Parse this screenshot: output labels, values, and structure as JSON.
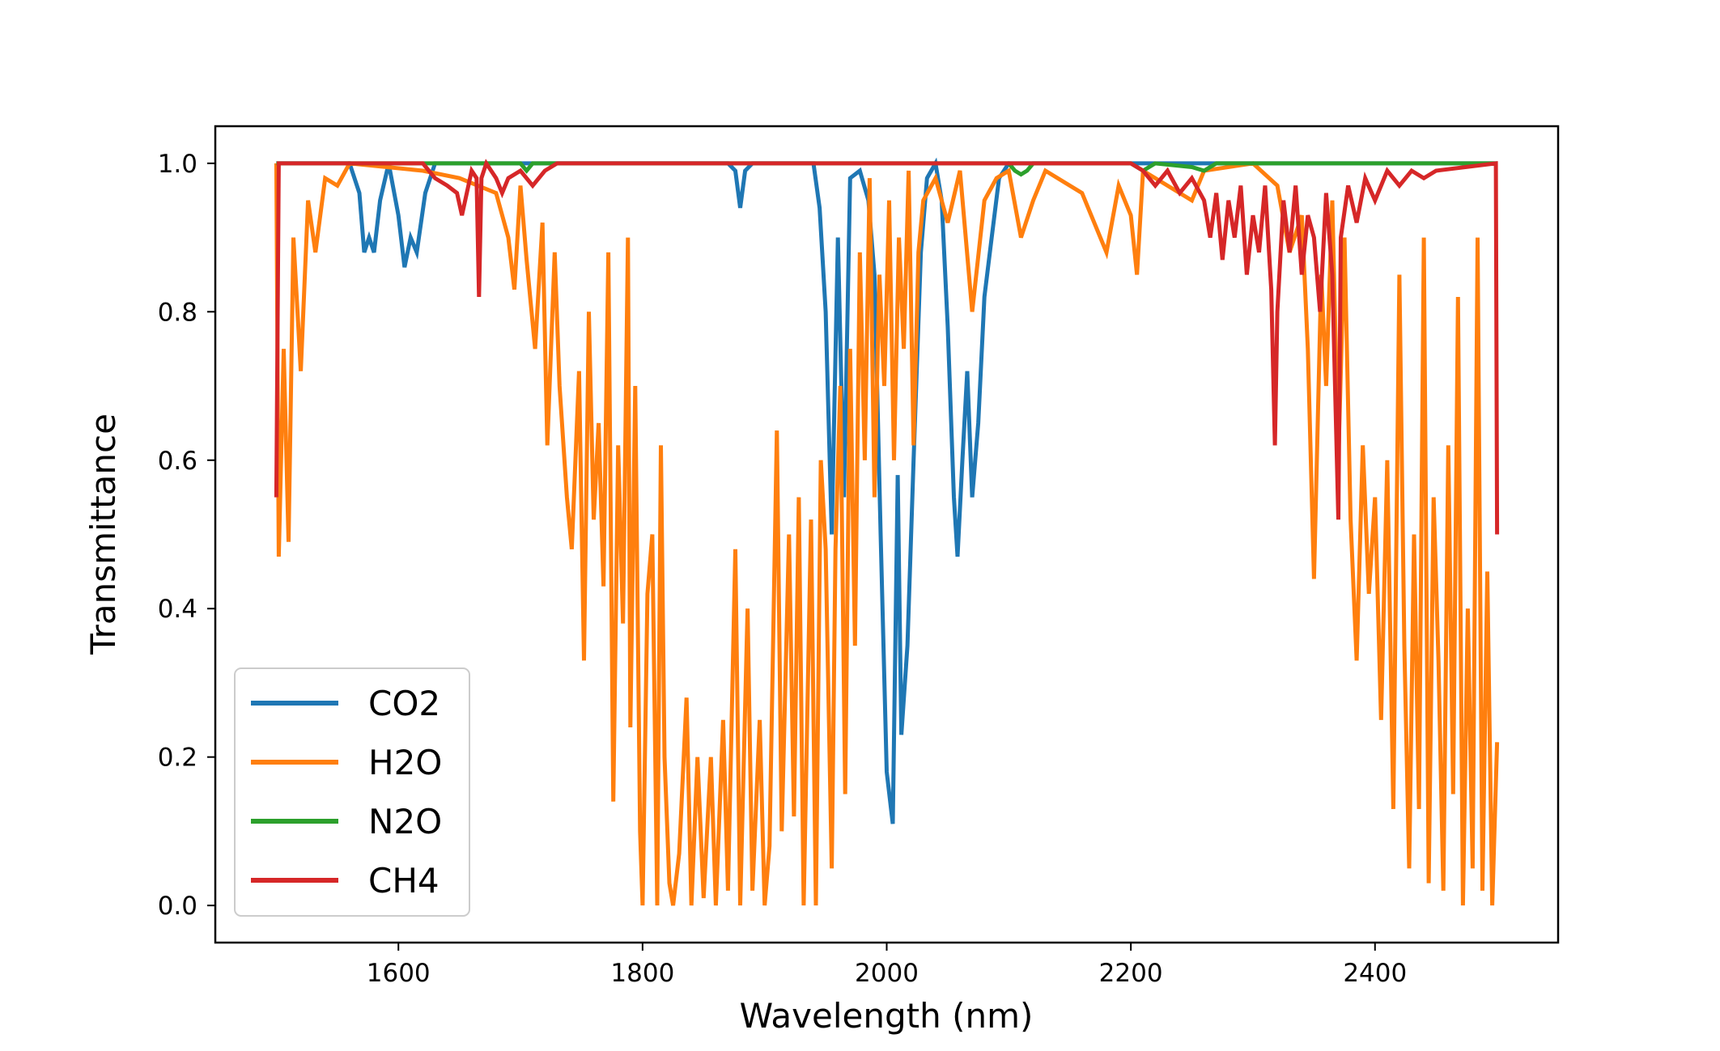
{
  "chart_data": {
    "type": "line",
    "title": "",
    "xlabel": "Wavelength (nm)",
    "ylabel": "Transmittance",
    "xlim": [
      1450,
      2550
    ],
    "ylim": [
      -0.05,
      1.05
    ],
    "xticks": [
      1600,
      1800,
      2000,
      2200,
      2400
    ],
    "xtick_labels": [
      "1600",
      "1800",
      "2000",
      "2200",
      "2400"
    ],
    "yticks": [
      0.0,
      0.2,
      0.4,
      0.6,
      0.8,
      1.0
    ],
    "ytick_labels": [
      "0.0",
      "0.2",
      "0.4",
      "0.6",
      "0.8",
      "1.0"
    ],
    "grid": false,
    "legend_position": "lower-left",
    "series": [
      {
        "name": "CO2",
        "color": "#1f77b4",
        "points": [
          [
            1500,
            1.0
          ],
          [
            1560,
            1.0
          ],
          [
            1568,
            0.96
          ],
          [
            1572,
            0.88
          ],
          [
            1576,
            0.9
          ],
          [
            1580,
            0.88
          ],
          [
            1585,
            0.95
          ],
          [
            1592,
            1.0
          ],
          [
            1600,
            0.93
          ],
          [
            1605,
            0.86
          ],
          [
            1610,
            0.9
          ],
          [
            1615,
            0.88
          ],
          [
            1622,
            0.96
          ],
          [
            1630,
            1.0
          ],
          [
            1870,
            1.0
          ],
          [
            1876,
            0.99
          ],
          [
            1880,
            0.94
          ],
          [
            1884,
            0.99
          ],
          [
            1890,
            1.0
          ],
          [
            1940,
            1.0
          ],
          [
            1945,
            0.94
          ],
          [
            1950,
            0.8
          ],
          [
            1955,
            0.5
          ],
          [
            1960,
            0.9
          ],
          [
            1965,
            0.55
          ],
          [
            1970,
            0.98
          ],
          [
            1978,
            0.99
          ],
          [
            1985,
            0.95
          ],
          [
            1990,
            0.85
          ],
          [
            1995,
            0.5
          ],
          [
            2000,
            0.18
          ],
          [
            2005,
            0.11
          ],
          [
            2009,
            0.58
          ],
          [
            2012,
            0.23
          ],
          [
            2017,
            0.35
          ],
          [
            2022,
            0.6
          ],
          [
            2028,
            0.88
          ],
          [
            2033,
            0.98
          ],
          [
            2040,
            1.0
          ],
          [
            2045,
            0.95
          ],
          [
            2050,
            0.78
          ],
          [
            2055,
            0.55
          ],
          [
            2058,
            0.47
          ],
          [
            2062,
            0.6
          ],
          [
            2066,
            0.72
          ],
          [
            2070,
            0.55
          ],
          [
            2075,
            0.65
          ],
          [
            2080,
            0.82
          ],
          [
            2086,
            0.9
          ],
          [
            2092,
            0.98
          ],
          [
            2100,
            1.0
          ],
          [
            2500,
            1.0
          ]
        ]
      },
      {
        "name": "H2O",
        "color": "#ff7f0e",
        "points": [
          [
            1500,
            1.0
          ],
          [
            1502,
            0.47
          ],
          [
            1506,
            0.75
          ],
          [
            1510,
            0.49
          ],
          [
            1514,
            0.9
          ],
          [
            1520,
            0.72
          ],
          [
            1526,
            0.95
          ],
          [
            1532,
            0.88
          ],
          [
            1540,
            0.98
          ],
          [
            1550,
            0.97
          ],
          [
            1560,
            1.0
          ],
          [
            1620,
            0.99
          ],
          [
            1650,
            0.98
          ],
          [
            1680,
            0.96
          ],
          [
            1690,
            0.9
          ],
          [
            1695,
            0.83
          ],
          [
            1700,
            0.97
          ],
          [
            1705,
            0.87
          ],
          [
            1712,
            0.75
          ],
          [
            1718,
            0.92
          ],
          [
            1722,
            0.62
          ],
          [
            1728,
            0.88
          ],
          [
            1732,
            0.7
          ],
          [
            1738,
            0.55
          ],
          [
            1742,
            0.48
          ],
          [
            1748,
            0.72
          ],
          [
            1752,
            0.33
          ],
          [
            1756,
            0.8
          ],
          [
            1760,
            0.52
          ],
          [
            1764,
            0.65
          ],
          [
            1768,
            0.43
          ],
          [
            1772,
            0.88
          ],
          [
            1776,
            0.14
          ],
          [
            1780,
            0.62
          ],
          [
            1784,
            0.38
          ],
          [
            1788,
            0.9
          ],
          [
            1790,
            0.24
          ],
          [
            1794,
            0.7
          ],
          [
            1798,
            0.1
          ],
          [
            1800,
            0.0
          ],
          [
            1804,
            0.42
          ],
          [
            1808,
            0.5
          ],
          [
            1812,
            0.0
          ],
          [
            1815,
            0.62
          ],
          [
            1818,
            0.2
          ],
          [
            1822,
            0.03
          ],
          [
            1825,
            0.0
          ],
          [
            1830,
            0.07
          ],
          [
            1836,
            0.28
          ],
          [
            1840,
            0.0
          ],
          [
            1845,
            0.2
          ],
          [
            1850,
            0.01
          ],
          [
            1856,
            0.2
          ],
          [
            1860,
            0.0
          ],
          [
            1866,
            0.25
          ],
          [
            1870,
            0.02
          ],
          [
            1876,
            0.48
          ],
          [
            1880,
            0.0
          ],
          [
            1886,
            0.4
          ],
          [
            1890,
            0.02
          ],
          [
            1896,
            0.25
          ],
          [
            1900,
            0.0
          ],
          [
            1904,
            0.08
          ],
          [
            1910,
            0.64
          ],
          [
            1914,
            0.1
          ],
          [
            1920,
            0.5
          ],
          [
            1924,
            0.12
          ],
          [
            1928,
            0.55
          ],
          [
            1932,
            0.0
          ],
          [
            1938,
            0.52
          ],
          [
            1942,
            0.0
          ],
          [
            1946,
            0.6
          ],
          [
            1950,
            0.48
          ],
          [
            1955,
            0.05
          ],
          [
            1958,
            0.48
          ],
          [
            1962,
            0.7
          ],
          [
            1966,
            0.15
          ],
          [
            1970,
            0.75
          ],
          [
            1974,
            0.35
          ],
          [
            1978,
            0.88
          ],
          [
            1982,
            0.6
          ],
          [
            1986,
            0.98
          ],
          [
            1990,
            0.55
          ],
          [
            1994,
            0.85
          ],
          [
            1998,
            0.7
          ],
          [
            2002,
            0.95
          ],
          [
            2006,
            0.6
          ],
          [
            2010,
            0.9
          ],
          [
            2014,
            0.75
          ],
          [
            2018,
            0.99
          ],
          [
            2022,
            0.62
          ],
          [
            2026,
            0.88
          ],
          [
            2030,
            0.95
          ],
          [
            2040,
            0.98
          ],
          [
            2050,
            0.92
          ],
          [
            2060,
            0.99
          ],
          [
            2070,
            0.8
          ],
          [
            2080,
            0.95
          ],
          [
            2090,
            0.98
          ],
          [
            2100,
            0.99
          ],
          [
            2110,
            0.9
          ],
          [
            2120,
            0.95
          ],
          [
            2130,
            0.99
          ],
          [
            2160,
            0.96
          ],
          [
            2180,
            0.88
          ],
          [
            2190,
            0.97
          ],
          [
            2200,
            0.93
          ],
          [
            2205,
            0.85
          ],
          [
            2210,
            0.99
          ],
          [
            2250,
            0.95
          ],
          [
            2260,
            0.99
          ],
          [
            2300,
            1.0
          ],
          [
            2320,
            0.97
          ],
          [
            2330,
            0.88
          ],
          [
            2340,
            0.93
          ],
          [
            2345,
            0.75
          ],
          [
            2350,
            0.44
          ],
          [
            2356,
            0.85
          ],
          [
            2360,
            0.7
          ],
          [
            2365,
            0.95
          ],
          [
            2370,
            0.6
          ],
          [
            2375,
            0.9
          ],
          [
            2380,
            0.52
          ],
          [
            2385,
            0.33
          ],
          [
            2390,
            0.62
          ],
          [
            2395,
            0.42
          ],
          [
            2400,
            0.55
          ],
          [
            2405,
            0.25
          ],
          [
            2410,
            0.6
          ],
          [
            2415,
            0.13
          ],
          [
            2420,
            0.85
          ],
          [
            2424,
            0.35
          ],
          [
            2428,
            0.05
          ],
          [
            2432,
            0.5
          ],
          [
            2436,
            0.13
          ],
          [
            2440,
            0.9
          ],
          [
            2444,
            0.03
          ],
          [
            2448,
            0.55
          ],
          [
            2452,
            0.33
          ],
          [
            2456,
            0.02
          ],
          [
            2460,
            0.62
          ],
          [
            2464,
            0.15
          ],
          [
            2468,
            0.82
          ],
          [
            2472,
            0.0
          ],
          [
            2476,
            0.4
          ],
          [
            2480,
            0.05
          ],
          [
            2484,
            0.9
          ],
          [
            2488,
            0.02
          ],
          [
            2492,
            0.45
          ],
          [
            2496,
            0.0
          ],
          [
            2500,
            0.22
          ]
        ]
      },
      {
        "name": "N2O",
        "color": "#2ca02c",
        "points": [
          [
            1500,
            1.0
          ],
          [
            1700,
            1.0
          ],
          [
            1705,
            0.99
          ],
          [
            1710,
            1.0
          ],
          [
            2100,
            1.0
          ],
          [
            2105,
            0.99
          ],
          [
            2110,
            0.985
          ],
          [
            2115,
            0.99
          ],
          [
            2120,
            1.0
          ],
          [
            2200,
            1.0
          ],
          [
            2210,
            0.99
          ],
          [
            2220,
            1.0
          ],
          [
            2250,
            0.995
          ],
          [
            2260,
            0.99
          ],
          [
            2270,
            1.0
          ],
          [
            2500,
            1.0
          ]
        ]
      },
      {
        "name": "CH4",
        "color": "#d62728",
        "points": [
          [
            1500,
            0.55
          ],
          [
            1502,
            1.0
          ],
          [
            1620,
            1.0
          ],
          [
            1630,
            0.98
          ],
          [
            1640,
            0.97
          ],
          [
            1648,
            0.96
          ],
          [
            1652,
            0.93
          ],
          [
            1656,
            0.96
          ],
          [
            1660,
            0.99
          ],
          [
            1664,
            0.98
          ],
          [
            1666,
            0.82
          ],
          [
            1668,
            0.98
          ],
          [
            1672,
            1.0
          ],
          [
            1680,
            0.98
          ],
          [
            1685,
            0.96
          ],
          [
            1690,
            0.98
          ],
          [
            1700,
            0.99
          ],
          [
            1710,
            0.97
          ],
          [
            1720,
            0.99
          ],
          [
            1730,
            1.0
          ],
          [
            2200,
            1.0
          ],
          [
            2210,
            0.99
          ],
          [
            2220,
            0.97
          ],
          [
            2230,
            0.99
          ],
          [
            2240,
            0.96
          ],
          [
            2250,
            0.98
          ],
          [
            2260,
            0.95
          ],
          [
            2265,
            0.9
          ],
          [
            2270,
            0.96
          ],
          [
            2275,
            0.87
          ],
          [
            2280,
            0.95
          ],
          [
            2285,
            0.9
          ],
          [
            2290,
            0.97
          ],
          [
            2295,
            0.85
          ],
          [
            2300,
            0.93
          ],
          [
            2305,
            0.88
          ],
          [
            2310,
            0.97
          ],
          [
            2315,
            0.83
          ],
          [
            2318,
            0.62
          ],
          [
            2320,
            0.8
          ],
          [
            2325,
            0.95
          ],
          [
            2330,
            0.88
          ],
          [
            2335,
            0.97
          ],
          [
            2340,
            0.85
          ],
          [
            2345,
            0.93
          ],
          [
            2350,
            0.9
          ],
          [
            2355,
            0.8
          ],
          [
            2360,
            0.96
          ],
          [
            2365,
            0.85
          ],
          [
            2370,
            0.52
          ],
          [
            2372,
            0.9
          ],
          [
            2378,
            0.97
          ],
          [
            2385,
            0.92
          ],
          [
            2392,
            0.98
          ],
          [
            2400,
            0.95
          ],
          [
            2410,
            0.99
          ],
          [
            2420,
            0.97
          ],
          [
            2430,
            0.99
          ],
          [
            2440,
            0.98
          ],
          [
            2450,
            0.99
          ],
          [
            2499,
            1.0
          ],
          [
            2500,
            0.5
          ]
        ]
      }
    ]
  }
}
